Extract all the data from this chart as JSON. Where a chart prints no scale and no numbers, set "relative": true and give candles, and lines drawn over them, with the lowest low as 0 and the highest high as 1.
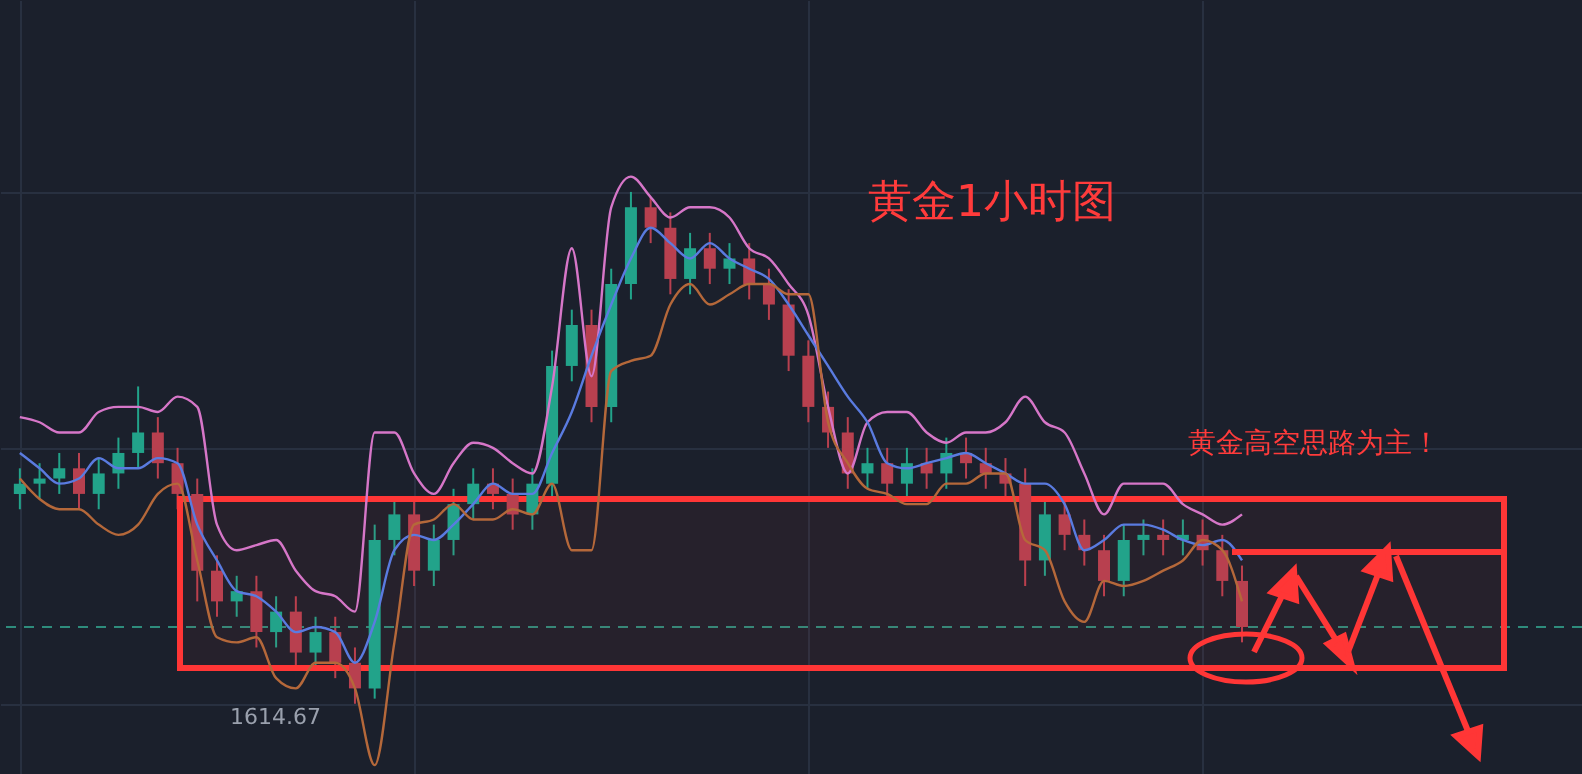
{
  "chart_data": {
    "type": "candlestick",
    "title": "黄金1小时图",
    "relative": true,
    "grid": true,
    "annotations": [
      "黄金高空思路为主！",
      "1614.67"
    ],
    "categories": [
      null,
      null,
      null,
      null,
      null,
      null,
      null,
      null,
      null,
      null,
      null,
      null,
      null,
      null,
      null,
      null,
      null,
      null,
      null,
      null,
      null,
      null,
      null,
      null,
      null,
      null,
      null,
      null,
      null,
      null,
      null,
      null,
      null,
      null,
      null,
      null,
      null,
      null,
      null,
      null,
      null,
      null,
      null,
      null,
      null,
      null,
      null,
      null,
      null,
      null,
      null,
      null,
      null,
      null,
      null,
      null,
      null,
      null,
      null,
      null,
      null,
      null,
      null
    ],
    "ohlc": [
      [
        0.41,
        0.46,
        0.38,
        0.43
      ],
      [
        0.43,
        0.47,
        0.4,
        0.44
      ],
      [
        0.44,
        0.49,
        0.41,
        0.46
      ],
      [
        0.46,
        0.49,
        0.38,
        0.41
      ],
      [
        0.41,
        0.48,
        0.38,
        0.45
      ],
      [
        0.45,
        0.52,
        0.42,
        0.49
      ],
      [
        0.49,
        0.62,
        0.46,
        0.53
      ],
      [
        0.53,
        0.56,
        0.44,
        0.47
      ],
      [
        0.47,
        0.5,
        0.38,
        0.41
      ],
      [
        0.41,
        0.44,
        0.2,
        0.26
      ],
      [
        0.26,
        0.29,
        0.17,
        0.2
      ],
      [
        0.2,
        0.25,
        0.17,
        0.22
      ],
      [
        0.22,
        0.25,
        0.11,
        0.14
      ],
      [
        0.14,
        0.21,
        0.11,
        0.18
      ],
      [
        0.18,
        0.21,
        0.07,
        0.1
      ],
      [
        0.1,
        0.17,
        0.07,
        0.14
      ],
      [
        0.14,
        0.17,
        0.05,
        0.08
      ],
      [
        0.08,
        0.11,
        0,
        0.03
      ],
      [
        0.03,
        0.35,
        0.01,
        0.32
      ],
      [
        0.32,
        0.4,
        0.29,
        0.37
      ],
      [
        0.37,
        0.4,
        0.23,
        0.26
      ],
      [
        0.26,
        0.35,
        0.23,
        0.32
      ],
      [
        0.32,
        0.42,
        0.29,
        0.39
      ],
      [
        0.39,
        0.46,
        0.36,
        0.43
      ],
      [
        0.43,
        0.46,
        0.38,
        0.41
      ],
      [
        0.41,
        0.44,
        0.34,
        0.37
      ],
      [
        0.37,
        0.46,
        0.34,
        0.43
      ],
      [
        0.43,
        0.69,
        0.4,
        0.66
      ],
      [
        0.66,
        0.77,
        0.63,
        0.74
      ],
      [
        0.74,
        0.77,
        0.55,
        0.58
      ],
      [
        0.58,
        0.85,
        0.55,
        0.82
      ],
      [
        0.82,
        1,
        0.79,
        0.97
      ],
      [
        0.97,
        0.99,
        0.9,
        0.93
      ],
      [
        0.93,
        0.96,
        0.8,
        0.83
      ],
      [
        0.83,
        0.92,
        0.8,
        0.89
      ],
      [
        0.89,
        0.92,
        0.82,
        0.85
      ],
      [
        0.85,
        0.9,
        0.82,
        0.87
      ],
      [
        0.87,
        0.9,
        0.79,
        0.82
      ],
      [
        0.82,
        0.85,
        0.75,
        0.78
      ],
      [
        0.78,
        0.81,
        0.65,
        0.68
      ],
      [
        0.68,
        0.71,
        0.55,
        0.58
      ],
      [
        0.58,
        0.61,
        0.5,
        0.53
      ],
      [
        0.53,
        0.56,
        0.42,
        0.45
      ],
      [
        0.45,
        0.5,
        0.42,
        0.47
      ],
      [
        0.47,
        0.5,
        0.4,
        0.43
      ],
      [
        0.43,
        0.5,
        0.4,
        0.47
      ],
      [
        0.47,
        0.5,
        0.42,
        0.45
      ],
      [
        0.45,
        0.52,
        0.42,
        0.49
      ],
      [
        0.49,
        0.52,
        0.44,
        0.47
      ],
      [
        0.47,
        0.5,
        0.42,
        0.45
      ],
      [
        0.45,
        0.48,
        0.4,
        0.43
      ],
      [
        0.43,
        0.46,
        0.23,
        0.28
      ],
      [
        0.28,
        0.4,
        0.25,
        0.37
      ],
      [
        0.37,
        0.4,
        0.3,
        0.33
      ],
      [
        0.33,
        0.36,
        0.27,
        0.3
      ],
      [
        0.3,
        0.33,
        0.21,
        0.24
      ],
      [
        0.24,
        0.35,
        0.21,
        0.32
      ],
      [
        0.32,
        0.36,
        0.29,
        0.33
      ],
      [
        0.33,
        0.36,
        0.29,
        0.32
      ],
      [
        0.32,
        0.36,
        0.29,
        0.33
      ],
      [
        0.33,
        0.36,
        0.27,
        0.3
      ],
      [
        0.3,
        0.33,
        0.21,
        0.24
      ],
      [
        0.24,
        0.27,
        0.12,
        0.15
      ]
    ],
    "colors": [
      "#22a38a",
      "#22a38a",
      "#22a38a",
      "#b8404f",
      "#22a38a",
      "#22a38a",
      "#22a38a",
      "#b8404f",
      "#b8404f",
      "#b8404f",
      "#b8404f",
      "#22a38a",
      "#b8404f",
      "#22a38a",
      "#b8404f",
      "#22a38a",
      "#b8404f",
      "#b8404f",
      "#22a38a",
      "#22a38a",
      "#b8404f",
      "#22a38a",
      "#22a38a",
      "#22a38a",
      "#b8404f",
      "#b8404f",
      "#22a38a",
      "#22a38a",
      "#22a38a",
      "#b8404f",
      "#22a38a",
      "#22a38a",
      "#b8404f",
      "#b8404f",
      "#22a38a",
      "#b8404f",
      "#22a38a",
      "#b8404f",
      "#b8404f",
      "#b8404f",
      "#b8404f",
      "#b8404f",
      "#b8404f",
      "#22a38a",
      "#b8404f",
      "#22a38a",
      "#b8404f",
      "#22a38a",
      "#b8404f",
      "#b8404f",
      "#b8404f",
      "#b8404f",
      "#22a38a",
      "#b8404f",
      "#b8404f",
      "#b8404f",
      "#22a38a",
      "#22a38a",
      "#b8404f",
      "#22a38a",
      "#b8404f",
      "#b8404f",
      "#b8404f"
    ],
    "series": [
      {
        "type": "line",
        "color": "#d676c8",
        "values": [
          0.56,
          0.55,
          0.53,
          0.53,
          0.57,
          0.58,
          0.58,
          0.57,
          0.6,
          0.58,
          0.35,
          0.3,
          0.31,
          0.32,
          0.26,
          0.22,
          0.21,
          0.18,
          0.53,
          0.53,
          0.45,
          0.41,
          0.47,
          0.51,
          0.5,
          0.47,
          0.45,
          0.62,
          0.89,
          0.64,
          0.97,
          1.03,
          0.99,
          0.95,
          0.97,
          0.97,
          0.95,
          0.89,
          0.87,
          0.82,
          0.76,
          0.58,
          0.45,
          0.55,
          0.57,
          0.57,
          0.53,
          0.51,
          0.53,
          0.53,
          0.55,
          0.6,
          0.55,
          0.53,
          0.45,
          0.37,
          0.43,
          0.43,
          0.43,
          0.39,
          0.37,
          0.35,
          0.37
        ]
      },
      {
        "type": "line",
        "color": "#5a7be0",
        "values": [
          0.49,
          0.46,
          0.43,
          0.44,
          0.48,
          0.46,
          0.46,
          0.48,
          0.47,
          0.35,
          0.28,
          0.22,
          0.21,
          0.18,
          0.14,
          0.15,
          0.14,
          0.08,
          0.16,
          0.3,
          0.33,
          0.32,
          0.35,
          0.39,
          0.43,
          0.41,
          0.41,
          0.49,
          0.57,
          0.68,
          0.78,
          0.87,
          0.93,
          0.9,
          0.87,
          0.9,
          0.87,
          0.85,
          0.83,
          0.78,
          0.72,
          0.66,
          0.6,
          0.55,
          0.47,
          0.46,
          0.47,
          0.48,
          0.49,
          0.47,
          0.45,
          0.43,
          0.43,
          0.39,
          0.3,
          0.32,
          0.35,
          0.35,
          0.34,
          0.32,
          0.31,
          0.32,
          0.28
        ]
      },
      {
        "type": "line",
        "color": "#b5683a",
        "values": [
          0.44,
          0.4,
          0.38,
          0.38,
          0.35,
          0.33,
          0.35,
          0.41,
          0.43,
          0.28,
          0.13,
          0.12,
          0.13,
          0.05,
          0.03,
          0.08,
          0.08,
          0.03,
          -0.12,
          0.12,
          0.35,
          0.36,
          0.39,
          0.36,
          0.36,
          0.38,
          0.37,
          0.43,
          0.3,
          0.3,
          0.65,
          0.67,
          0.68,
          0.78,
          0.82,
          0.78,
          0.8,
          0.82,
          0.82,
          0.8,
          0.8,
          0.55,
          0.47,
          0.42,
          0.41,
          0.39,
          0.39,
          0.43,
          0.43,
          0.45,
          0.45,
          0.32,
          0.3,
          0.2,
          0.16,
          0.24,
          0.23,
          0.24,
          0.26,
          0.28,
          0.32,
          0.3,
          0.2
        ]
      }
    ],
    "bands": [
      {
        "axis": "y",
        "from": 0.07,
        "to": 0.4,
        "color": "#ff3636"
      }
    ],
    "ref_lines": [
      {
        "axis": "y",
        "value": 0.15,
        "color": "#2e8c7c",
        "line_style": "dashed"
      }
    ]
  }
}
